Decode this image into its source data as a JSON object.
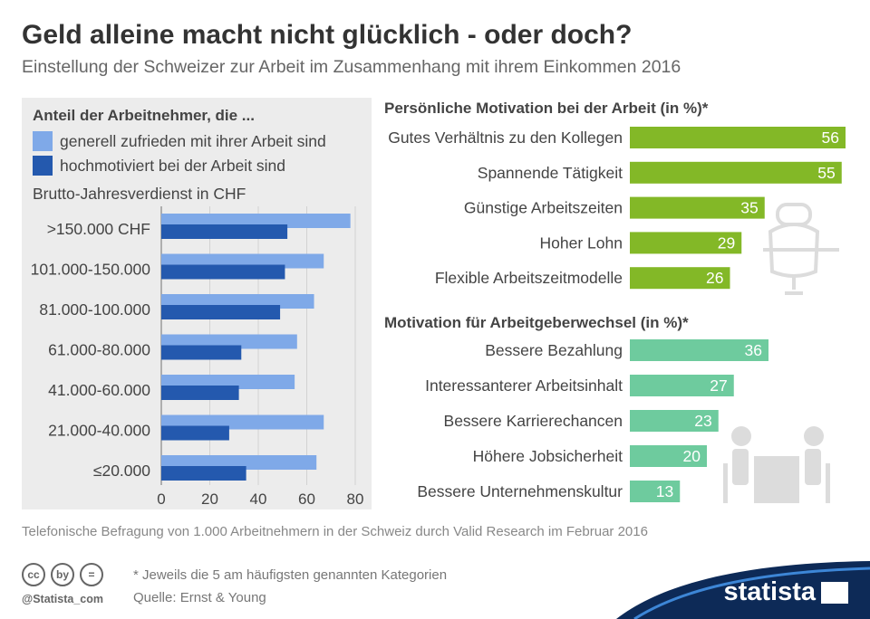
{
  "header": {
    "title": "Geld alleine macht nicht glücklich - oder doch?",
    "subtitle": "Einstellung der Schweizer zur Arbeit im Zusammenhang mit ihrem Einkommen 2016"
  },
  "colors": {
    "light_blue": "#7fa9e8",
    "dark_blue": "#2459ae",
    "green": "#83b827",
    "teal": "#6ecb9e",
    "panel_bg": "#ececec",
    "brand_navy": "#0d2a57"
  },
  "legend": {
    "title": "Anteil der Arbeitnehmer, die ...",
    "series1": "generell zufrieden mit ihrer Arbeit sind",
    "series2": "hochmotiviert bei der Arbeit sind",
    "axis_title": "Brutto-Jahresverdienst in CHF"
  },
  "chart_data": [
    {
      "type": "bar",
      "orientation": "horizontal",
      "categories": [
        ">150.000 CHF",
        "101.000-150.000",
        "81.000-100.000",
        "61.000-80.000",
        "41.000-60.000",
        "21.000-40.000",
        "≤20.000"
      ],
      "series": [
        {
          "name": "generell zufrieden mit ihrer Arbeit sind",
          "values": [
            78,
            67,
            63,
            56,
            55,
            67,
            64
          ]
        },
        {
          "name": "hochmotiviert bei der Arbeit sind",
          "values": [
            52,
            51,
            49,
            33,
            32,
            28,
            35
          ]
        }
      ],
      "xlim": [
        0,
        80
      ],
      "xticks": [
        0,
        20,
        40,
        60,
        80
      ],
      "ylabel": "Brutto-Jahresverdienst in CHF"
    },
    {
      "type": "bar",
      "orientation": "horizontal",
      "title": "Persönliche Motivation bei der Arbeit (in %)*",
      "categories": [
        "Gutes Verhältnis zu den Kollegen",
        "Spannende Tätigkeit",
        "Günstige Arbeitszeiten",
        "Hoher Lohn",
        "Flexible Arbeitszeitmodelle"
      ],
      "values": [
        56,
        55,
        35,
        29,
        26
      ]
    },
    {
      "type": "bar",
      "orientation": "horizontal",
      "title": "Motivation für Arbeitgeberwechsel (in %)*",
      "categories": [
        "Bessere Bezahlung",
        "Interessanterer Arbeitsinhalt",
        "Bessere Karrierechancen",
        "Höhere Jobsicherheit",
        "Bessere Unternehmenskultur"
      ],
      "values": [
        36,
        27,
        23,
        20,
        13
      ]
    }
  ],
  "footer": {
    "source_note": "Telefonische Befragung von 1.000 Arbeitnehmern in der Schweiz durch Valid Research im Februar 2016",
    "footnote": "* Jeweils die 5 am häufigsten genannten Kategorien",
    "source": "Quelle: Ernst & Young",
    "handle": "@Statista_com",
    "brand": "statista",
    "cc_icons": [
      "cc",
      "by",
      "="
    ]
  }
}
